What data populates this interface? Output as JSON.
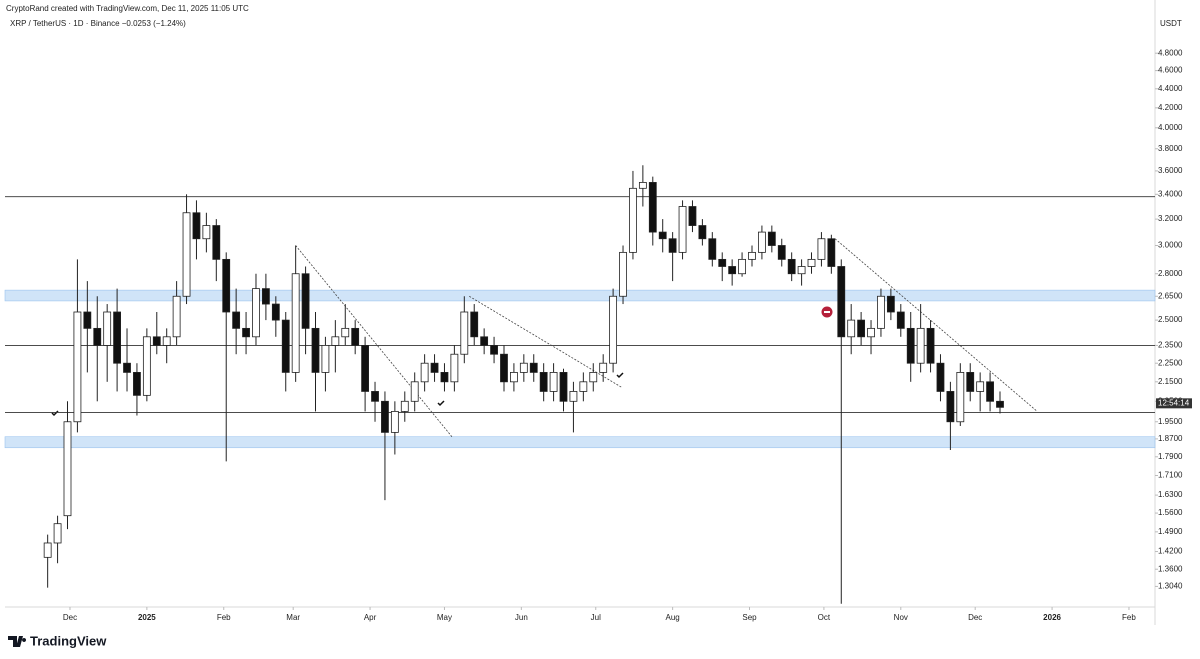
{
  "header": {
    "credit": "CryptoRand created with TradingView.com, Dec 11, 2025 11:05 UTC",
    "symbol": "XRP / TetherUS · 1D · Binance  −0.0253 (−1.24%)",
    "logo": "TradingView"
  },
  "chart_data": {
    "type": "candlestick",
    "currency": "USDT",
    "log_scale": true,
    "countdown": "12:54:14",
    "up_color": "#ffffff",
    "down_color": "#111111",
    "wick_color": "#222222",
    "x": [
      -9,
      -5,
      -1,
      3,
      7,
      11,
      15,
      19,
      23,
      27,
      31,
      35,
      39,
      43,
      47,
      51,
      55,
      59,
      63,
      67,
      71,
      75,
      79,
      83,
      87,
      91,
      95,
      99,
      103,
      107,
      111,
      115,
      119,
      123,
      127,
      131,
      135,
      139,
      143,
      147,
      151,
      155,
      159,
      163,
      167,
      171,
      175,
      179,
      183,
      187,
      191,
      195,
      199,
      203,
      207,
      211,
      215,
      219,
      223,
      227,
      231,
      235,
      239,
      243,
      247,
      251,
      255,
      259,
      263,
      267,
      271,
      275,
      279,
      283,
      287,
      291,
      295,
      299,
      303,
      307,
      311,
      315,
      319,
      323,
      327,
      331,
      335,
      339,
      343,
      347,
      351,
      355,
      359,
      363,
      367,
      371,
      375
    ],
    "open": [
      1.4,
      1.45,
      1.55,
      1.95,
      2.55,
      2.45,
      2.35,
      2.55,
      2.25,
      2.2,
      2.08,
      2.4,
      2.35,
      2.4,
      2.65,
      3.25,
      3.05,
      3.15,
      2.9,
      2.55,
      2.45,
      2.4,
      2.7,
      2.6,
      2.5,
      2.2,
      2.8,
      2.45,
      2.2,
      2.35,
      2.4,
      2.45,
      2.35,
      2.1,
      2.05,
      1.9,
      2.0,
      2.05,
      2.15,
      2.25,
      2.2,
      2.15,
      2.3,
      2.55,
      2.4,
      2.35,
      2.3,
      2.15,
      2.2,
      2.25,
      2.2,
      2.1,
      2.2,
      2.05,
      2.1,
      2.15,
      2.2,
      2.25,
      2.65,
      2.95,
      3.45,
      3.5,
      3.1,
      3.05,
      2.95,
      3.3,
      3.15,
      3.05,
      2.9,
      2.85,
      2.8,
      2.9,
      2.95,
      3.1,
      3.0,
      2.9,
      2.8,
      2.85,
      2.9,
      3.05,
      2.85,
      2.4,
      2.5,
      2.4,
      2.45,
      2.65,
      2.55,
      2.45,
      2.25,
      2.45,
      2.25,
      2.1,
      1.95,
      2.2,
      2.1,
      2.15,
      2.05
    ],
    "high": [
      1.48,
      1.55,
      2.05,
      2.9,
      2.75,
      2.65,
      2.6,
      2.7,
      2.45,
      2.25,
      2.45,
      2.55,
      2.45,
      2.75,
      3.4,
      3.35,
      3.25,
      3.2,
      2.95,
      2.7,
      2.55,
      2.8,
      2.8,
      2.65,
      2.55,
      3.0,
      2.85,
      2.55,
      2.4,
      2.5,
      2.6,
      2.5,
      2.4,
      2.15,
      2.1,
      2.05,
      2.1,
      2.2,
      2.3,
      2.3,
      2.25,
      2.35,
      2.65,
      2.6,
      2.45,
      2.4,
      2.35,
      2.25,
      2.3,
      2.3,
      2.25,
      2.25,
      2.22,
      2.15,
      2.2,
      2.25,
      2.3,
      2.7,
      3.0,
      3.6,
      3.65,
      3.55,
      3.2,
      3.1,
      3.35,
      3.35,
      3.2,
      3.1,
      2.95,
      2.9,
      2.95,
      3.0,
      3.15,
      3.15,
      3.05,
      2.95,
      2.9,
      2.95,
      3.1,
      3.08,
      2.9,
      2.6,
      2.55,
      2.5,
      2.7,
      2.7,
      2.6,
      2.55,
      2.6,
      2.5,
      2.3,
      2.15,
      2.25,
      2.25,
      2.2,
      2.2,
      2.1
    ],
    "low": [
      1.3,
      1.38,
      1.5,
      1.9,
      2.2,
      2.05,
      2.15,
      2.1,
      2.1,
      1.98,
      2.05,
      2.3,
      2.25,
      2.35,
      2.6,
      2.9,
      2.95,
      2.75,
      1.77,
      2.3,
      2.3,
      2.35,
      2.5,
      2.4,
      2.1,
      2.15,
      2.3,
      2.0,
      2.1,
      2.2,
      2.35,
      2.3,
      2.0,
      1.95,
      1.61,
      1.8,
      1.95,
      2.0,
      2.1,
      2.15,
      2.1,
      2.1,
      2.25,
      2.35,
      2.3,
      2.25,
      2.1,
      2.1,
      2.15,
      2.15,
      2.05,
      2.05,
      2.0,
      1.9,
      2.05,
      2.1,
      2.15,
      2.2,
      2.6,
      2.9,
      3.3,
      3.0,
      2.95,
      2.75,
      2.9,
      3.1,
      3.0,
      2.85,
      2.75,
      2.72,
      2.78,
      2.85,
      2.9,
      2.95,
      2.85,
      2.75,
      2.72,
      2.8,
      2.85,
      2.8,
      1.25,
      2.3,
      2.35,
      2.3,
      2.4,
      2.5,
      2.4,
      2.15,
      2.2,
      2.2,
      2.05,
      1.82,
      1.93,
      2.05,
      2.0,
      2.0,
      1.99
    ],
    "close": [
      1.45,
      1.52,
      1.95,
      2.55,
      2.45,
      2.35,
      2.55,
      2.25,
      2.2,
      2.08,
      2.4,
      2.35,
      2.4,
      2.65,
      3.25,
      3.05,
      3.15,
      2.9,
      2.55,
      2.45,
      2.4,
      2.7,
      2.6,
      2.5,
      2.2,
      2.8,
      2.45,
      2.2,
      2.35,
      2.4,
      2.45,
      2.35,
      2.1,
      2.05,
      1.9,
      2.0,
      2.05,
      2.15,
      2.25,
      2.2,
      2.15,
      2.3,
      2.55,
      2.4,
      2.35,
      2.3,
      2.15,
      2.2,
      2.25,
      2.2,
      2.1,
      2.2,
      2.05,
      2.1,
      2.15,
      2.2,
      2.25,
      2.65,
      2.95,
      3.45,
      3.5,
      3.1,
      3.05,
      2.95,
      3.3,
      3.15,
      3.05,
      2.9,
      2.85,
      2.8,
      2.9,
      2.95,
      3.1,
      3.0,
      2.9,
      2.8,
      2.85,
      2.9,
      3.05,
      2.85,
      2.4,
      2.5,
      2.4,
      2.45,
      2.65,
      2.55,
      2.45,
      2.25,
      2.45,
      2.25,
      2.1,
      1.95,
      2.2,
      2.1,
      2.15,
      2.05,
      2.02
    ],
    "levels": [
      3.38,
      2.35,
      1.995
    ],
    "zones": [
      [
        2.62,
        2.69
      ],
      [
        1.83,
        1.88
      ]
    ],
    "trendlines": [
      [
        [
          91,
          3.0
        ],
        [
          154,
          1.88
        ]
      ],
      [
        [
          161,
          2.65
        ],
        [
          222.6,
          2.12
        ]
      ],
      [
        [
          308.5,
          3.05
        ],
        [
          390,
          2.0
        ]
      ]
    ],
    "xlim": [
      -26.2,
      437.5
    ],
    "xticks": [
      {
        "value": 0,
        "label": "Dec"
      },
      {
        "value": 31,
        "label": "2025"
      },
      {
        "value": 62,
        "label": "Feb"
      },
      {
        "value": 90,
        "label": "Mar"
      },
      {
        "value": 121,
        "label": "Apr"
      },
      {
        "value": 151,
        "label": "May"
      },
      {
        "value": 182,
        "label": "Jun"
      },
      {
        "value": 212,
        "label": "Jul"
      },
      {
        "value": 243,
        "label": "Aug"
      },
      {
        "value": 274,
        "label": "Sep"
      },
      {
        "value": 304,
        "label": "Oct"
      },
      {
        "value": 335,
        "label": "Nov"
      },
      {
        "value": 365,
        "label": "Dec"
      },
      {
        "value": 396,
        "label": "2026"
      },
      {
        "value": 427,
        "label": "Feb"
      }
    ],
    "ylim": [
      1.24,
      5.08
    ],
    "yticks": [
      {
        "value": 4.8,
        "label": "4.8000"
      },
      {
        "value": 4.6,
        "label": "4.6000"
      },
      {
        "value": 4.4,
        "label": "4.4000"
      },
      {
        "value": 4.2,
        "label": "4.2000"
      },
      {
        "value": 4.0,
        "label": "4.0000"
      },
      {
        "value": 3.8,
        "label": "3.8000"
      },
      {
        "value": 3.6,
        "label": "3.6000"
      },
      {
        "value": 3.4,
        "label": "3.4000"
      },
      {
        "value": 3.2,
        "label": "3.2000"
      },
      {
        "value": 3.0,
        "label": "3.0000"
      },
      {
        "value": 2.8,
        "label": "2.8000"
      },
      {
        "value": 2.65,
        "label": "2.6500"
      },
      {
        "value": 2.5,
        "label": "2.5000"
      },
      {
        "value": 2.35,
        "label": "2.3500"
      },
      {
        "value": 2.25,
        "label": "2.2500"
      },
      {
        "value": 2.15,
        "label": "2.1500"
      },
      {
        "value": 2.05,
        "label": "2.0500"
      },
      {
        "value": 1.95,
        "label": "1.9500"
      },
      {
        "value": 1.87,
        "label": "1.8700"
      },
      {
        "value": 1.79,
        "label": "1.7900"
      },
      {
        "value": 1.71,
        "label": "1.7100"
      },
      {
        "value": 1.63,
        "label": "1.6300"
      },
      {
        "value": 1.56,
        "label": "1.5600"
      },
      {
        "value": 1.49,
        "label": "1.4900"
      },
      {
        "value": 1.42,
        "label": "1.4200"
      },
      {
        "value": 1.36,
        "label": "1.3600"
      },
      {
        "value": 1.304,
        "label": "1.3040"
      }
    ]
  }
}
